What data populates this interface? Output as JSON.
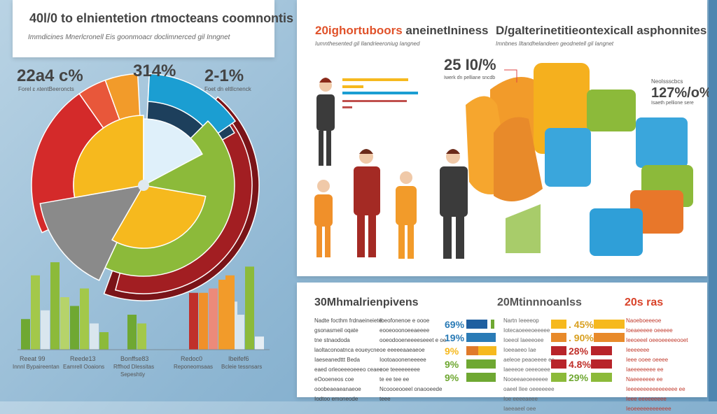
{
  "left_header": {
    "title": "40l/0 to elnientetion ɾtmocteans coomnontis",
    "subtitle": "Immdicines Mnerlcronell Eis goonmoacr doclimnerced gil Inngnet"
  },
  "pie": {
    "callouts": [
      {
        "value": "22a4 c%",
        "label": "Forel ɛ ʌtentBeeroncts"
      },
      {
        "value": "314%",
        "label": ""
      },
      {
        "value": "2-1%",
        "label": "Foet ɗn eltllcnenck"
      }
    ],
    "colors": {
      "red": "#d42a2a",
      "coral": "#e8573a",
      "orange": "#f29b2a",
      "blue": "#1b9ed2",
      "navy": "#1d3f5c",
      "darkred": "#a21e22",
      "green": "#8cba3a",
      "yellow": "#f6b91e",
      "gray": "#8a8a8a",
      "lightblue": "#dff0fa"
    }
  },
  "bar_chart": {
    "groups": [
      {
        "label": "Reeat 99",
        "sublabel": "Innnl Bypaireentan",
        "levels": [
          0.35,
          0.85,
          0.45,
          1.0,
          0.6,
          0.25
        ]
      },
      {
        "label": "Reede13",
        "sublabel": "Eamrell Ooaions",
        "levels": [
          0.5,
          0.7,
          0.3,
          0.2
        ]
      },
      {
        "label": "Bonffse83",
        "sublabel": "Rffhod Dlessitas",
        "sublabel2": "Sepeshtiy",
        "levels": [
          0.4,
          0.3
        ]
      },
      {
        "label": "Redoc0",
        "sublabel": "Reponeomsaas",
        "levels": [
          0.65,
          0.65,
          0.7,
          0.8,
          0.55
        ]
      },
      {
        "label": "Ibeifef6",
        "sublabel": "Bcleie tessnsars",
        "levels": [
          0.85,
          0.4,
          0.95,
          0.15
        ]
      }
    ]
  },
  "people_panel": {
    "title_accent": "20ighortuboors",
    "title_rest": " aneinetIniness",
    "subtitle": "Iumnthesented gil Ilandrieeroniug Iangned"
  },
  "shapes_panel": {
    "title": "D/gaIterinetitieontexicall asphonnites",
    "subtitle": "Imnbnes Iltandhelandeen geodnetell gil Iangnet",
    "callout1": {
      "value": "25 I0/%",
      "label": "Iwerk ɗn pelliane sncdb"
    },
    "callout2": {
      "heading": "NeoIssscbcs",
      "value": "127%/o%",
      "label": "Isaeth pellione sere"
    }
  },
  "bottom_panel": {
    "title1": "30Mhmalrienpivens",
    "title2": "20Mtinnnoanlss",
    "title3": "20s ras",
    "text_col1": [
      "Nadte focthm frdnaeineiete",
      "gsonasmeil oqate",
      "tne stnaododa",
      "laoltaconoatnca eoueycne",
      "Iaeseanedttt Beda",
      "eaed orleoeeeoeeeo ceaee",
      "eOooeneos coe",
      "ooobeaeaeanaeoe",
      "Iodtoo emoneode"
    ],
    "text_col2": [
      "Ibeofonenoe e oooe",
      "eooeooonoeeaeeee",
      "ooeodooeneeeeseeet e oe",
      "oe eeeeeaaeaeoe",
      "Iootoaooneneeeee",
      "eoe teeeeeeeee",
      "te ee tee ee",
      "Ncoooeooeel onaooeede",
      "teee"
    ],
    "pct_left": [
      "69%",
      "19%",
      "9%",
      "9%",
      "9%"
    ],
    "text_col3": [
      "Nartn Ieeeeop",
      "Iotecaoeeeoeeeee",
      "Ioeeol Iaeeeoee",
      "Ioeeaeeo Iae",
      "aeleoe peaoeeee ee",
      "Iaeeeoe oeeeoeee",
      "Nooeeaeoeeeeee",
      "oaeel Ilee oeeeeeee",
      "Ioe eeeeaeee",
      "Iaeeaeel oee"
    ],
    "pct_right": [
      ". 45%",
      ". 90%",
      "28%",
      "4.8%",
      "29%"
    ],
    "text_col4": [
      "Naoeboeeeoe",
      "Ioeaeeeee oeeeee",
      "Ieeoeeel oeeoeeeeeooet",
      "Ieeeeeee",
      "Ieee ooee oeeee",
      "Iaeeeeeeee ee",
      "Naeeeeeee ee",
      "Ieeeeeeeeeeeeeeee ee",
      "Ieee eeeeeeeee",
      "Ieoeeeeeeeeeeee"
    ]
  }
}
